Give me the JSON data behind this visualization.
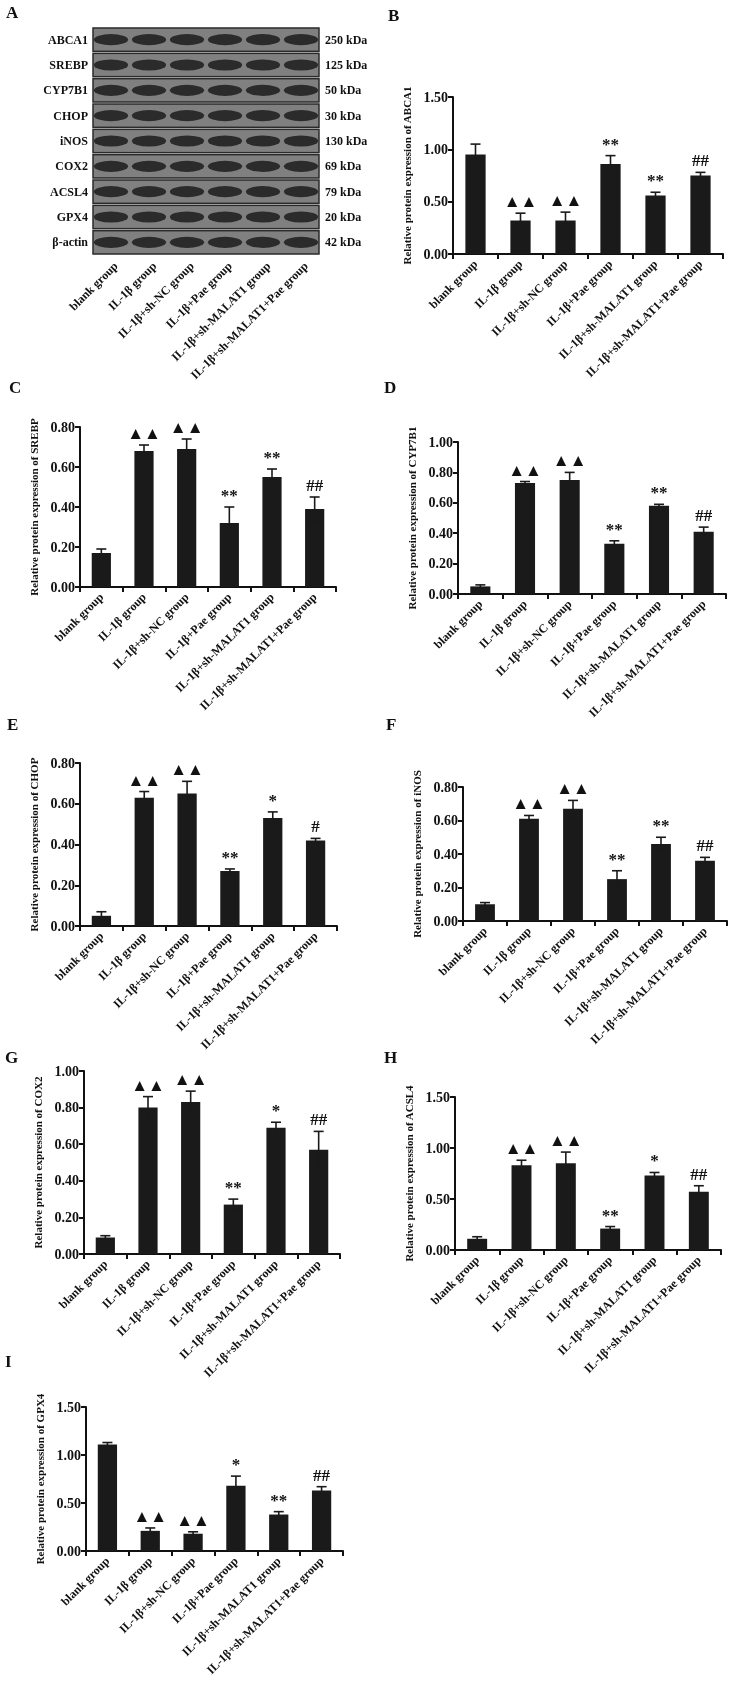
{
  "chart_data": [
    {
      "type": "other",
      "title": "A",
      "categories": [
        "blank group",
        "IL-1β group",
        "IL-1β+sh-NC group",
        "IL-1β+Pae group",
        "IL-1β+sh-MALAT1 group",
        "IL-1β+sh-MALAT1+Pae group"
      ],
      "y_categories": [
        "ABCA1",
        "SREBP",
        "CYP7B1",
        "CHOP",
        "iNOS",
        "COX2",
        "ACSL4",
        "GPX4",
        "β-actin"
      ],
      "y2_categories": [
        "250 kDa",
        "125 kDa",
        "50 kDa",
        "30 kDa",
        "130 kDa",
        "69 kDa",
        "79 kDa",
        "20 kDa",
        "42 kDa"
      ]
    },
    {
      "type": "bar",
      "title": "B",
      "categories": [
        "blank group",
        "IL-1β group",
        "IL-1β+sh-NC group",
        "IL-1β+Pae group",
        "IL-1β+sh-MALAT1 group",
        "IL-1β+sh-MALAT1+Pae group"
      ],
      "values": [
        0.95,
        0.32,
        0.32,
        0.86,
        0.56,
        0.75
      ],
      "errors": [
        0.1,
        0.07,
        0.08,
        0.08,
        0.03,
        0.03
      ],
      "color": "#1a1a1a",
      "ylabel": "Relative protein expression of ABCA1",
      "ylim": [
        0,
        1.5
      ],
      "yticks": [
        {
          "value": 0,
          "label": "0.00"
        },
        {
          "value": 0.5,
          "label": "0.50"
        },
        {
          "value": 1,
          "label": "1.00"
        },
        {
          "value": 1.5,
          "label": "1.50"
        }
      ],
      "annotations": [
        {
          "text": "▲▲",
          "x": "IL-1β group",
          "y": 0.32
        },
        {
          "text": "▲▲",
          "x": "IL-1β+sh-NC group",
          "y": 0.32
        },
        {
          "text": "**",
          "x": "IL-1β+Pae group",
          "y": 0.86
        },
        {
          "text": "**",
          "x": "IL-1β+sh-MALAT1 group",
          "y": 0.56
        },
        {
          "text": "##",
          "x": "IL-1β+sh-MALAT1+Pae group",
          "y": 0.75
        }
      ]
    },
    {
      "type": "bar",
      "title": "C",
      "categories": [
        "blank group",
        "IL-1β group",
        "IL-1β+sh-NC group",
        "IL-1β+Pae group",
        "IL-1β+sh-MALAT1 group",
        "IL-1β+sh-MALAT1+Pae group"
      ],
      "values": [
        0.17,
        0.68,
        0.69,
        0.32,
        0.55,
        0.39
      ],
      "errors": [
        0.02,
        0.03,
        0.05,
        0.08,
        0.04,
        0.06
      ],
      "color": "#1a1a1a",
      "ylabel": "Relative protein expression of SREBP",
      "ylim": [
        0,
        0.8
      ],
      "yticks": [
        {
          "value": 0,
          "label": "0.00"
        },
        {
          "value": 0.2,
          "label": "0.20"
        },
        {
          "value": 0.4,
          "label": "0.40"
        },
        {
          "value": 0.6,
          "label": "0.60"
        },
        {
          "value": 0.8,
          "label": "0.80"
        }
      ],
      "annotations": [
        {
          "text": "▲▲",
          "x": "IL-1β group",
          "y": 0.68
        },
        {
          "text": "▲▲",
          "x": "IL-1β+sh-NC group",
          "y": 0.69
        },
        {
          "text": "**",
          "x": "IL-1β+Pae group",
          "y": 0.32
        },
        {
          "text": "**",
          "x": "IL-1β+sh-MALAT1 group",
          "y": 0.55
        },
        {
          "text": "##",
          "x": "IL-1β+sh-MALAT1+Pae group",
          "y": 0.39
        }
      ]
    },
    {
      "type": "bar",
      "title": "D",
      "categories": [
        "blank group",
        "IL-1β group",
        "IL-1β+sh-NC group",
        "IL-1β+Pae group",
        "IL-1β+sh-MALAT1 group",
        "IL-1β+sh-MALAT1+Pae group"
      ],
      "values": [
        0.05,
        0.73,
        0.75,
        0.33,
        0.58,
        0.41
      ],
      "errors": [
        0.01,
        0.01,
        0.05,
        0.02,
        0.01,
        0.03
      ],
      "color": "#1a1a1a",
      "ylabel": "Relative protein expression of CYP7B1",
      "ylim": [
        0,
        1
      ],
      "yticks": [
        {
          "value": 0,
          "label": "0.00"
        },
        {
          "value": 0.2,
          "label": "0.20"
        },
        {
          "value": 0.4,
          "label": "0.40"
        },
        {
          "value": 0.6,
          "label": "0.60"
        },
        {
          "value": 0.8,
          "label": "0.80"
        },
        {
          "value": 1,
          "label": "1.00"
        }
      ],
      "annotations": [
        {
          "text": "▲▲",
          "x": "IL-1β group",
          "y": 0.73
        },
        {
          "text": "▲▲",
          "x": "IL-1β+sh-NC group",
          "y": 0.75
        },
        {
          "text": "**",
          "x": "IL-1β+Pae group",
          "y": 0.33
        },
        {
          "text": "**",
          "x": "IL-1β+sh-MALAT1 group",
          "y": 0.58
        },
        {
          "text": "##",
          "x": "IL-1β+sh-MALAT1+Pae group",
          "y": 0.41
        }
      ]
    },
    {
      "type": "bar",
      "title": "E",
      "categories": [
        "blank group",
        "IL-1β group",
        "IL-1β+sh-NC group",
        "IL-1β+Pae group",
        "IL-1β+sh-MALAT1 group",
        "IL-1β+sh-MALAT1+Pae group"
      ],
      "values": [
        0.05,
        0.63,
        0.65,
        0.27,
        0.53,
        0.42
      ],
      "errors": [
        0.02,
        0.03,
        0.06,
        0.01,
        0.03,
        0.01
      ],
      "color": "#1a1a1a",
      "ylabel": "Relative protein expression of CHOP",
      "ylim": [
        0,
        0.8
      ],
      "yticks": [
        {
          "value": 0,
          "label": "0.00"
        },
        {
          "value": 0.2,
          "label": "0.20"
        },
        {
          "value": 0.4,
          "label": "0.40"
        },
        {
          "value": 0.6,
          "label": "0.60"
        },
        {
          "value": 0.8,
          "label": "0.80"
        }
      ],
      "annotations": [
        {
          "text": "▲▲",
          "x": "IL-1β group",
          "y": 0.63
        },
        {
          "text": "▲▲",
          "x": "IL-1β+sh-NC group",
          "y": 0.65
        },
        {
          "text": "**",
          "x": "IL-1β+Pae group",
          "y": 0.27
        },
        {
          "text": "*",
          "x": "IL-1β+sh-MALAT1 group",
          "y": 0.53
        },
        {
          "text": "#",
          "x": "IL-1β+sh-MALAT1+Pae group",
          "y": 0.42
        }
      ]
    },
    {
      "type": "bar",
      "title": "F",
      "categories": [
        "blank group",
        "IL-1β group",
        "IL-1β+sh-NC group",
        "IL-1β+Pae group",
        "IL-1β+sh-MALAT1 group",
        "IL-1β+sh-MALAT1+Pae group"
      ],
      "values": [
        0.1,
        0.61,
        0.67,
        0.25,
        0.46,
        0.36
      ],
      "errors": [
        0.01,
        0.02,
        0.05,
        0.05,
        0.04,
        0.02
      ],
      "color": "#1a1a1a",
      "ylabel": "Relative protein expression of iNOS",
      "ylim": [
        0,
        0.8
      ],
      "yticks": [
        {
          "value": 0,
          "label": "0.00"
        },
        {
          "value": 0.2,
          "label": "0.20"
        },
        {
          "value": 0.4,
          "label": "0.40"
        },
        {
          "value": 0.6,
          "label": "0.60"
        },
        {
          "value": 0.8,
          "label": "0.80"
        }
      ],
      "annotations": [
        {
          "text": "▲▲",
          "x": "IL-1β group",
          "y": 0.61
        },
        {
          "text": "▲▲",
          "x": "IL-1β+sh-NC group",
          "y": 0.67
        },
        {
          "text": "**",
          "x": "IL-1β+Pae group",
          "y": 0.25
        },
        {
          "text": "**",
          "x": "IL-1β+sh-MALAT1 group",
          "y": 0.46
        },
        {
          "text": "##",
          "x": "IL-1β+sh-MALAT1+Pae group",
          "y": 0.36
        }
      ]
    },
    {
      "type": "bar",
      "title": "G",
      "categories": [
        "blank group",
        "IL-1β group",
        "IL-1β+sh-NC group",
        "IL-1β+Pae group",
        "IL-1β+sh-MALAT1 group",
        "IL-1β+sh-MALAT1+Pae group"
      ],
      "values": [
        0.09,
        0.8,
        0.83,
        0.27,
        0.69,
        0.57
      ],
      "errors": [
        0.01,
        0.06,
        0.06,
        0.03,
        0.03,
        0.1
      ],
      "color": "#1a1a1a",
      "ylabel": "Relative protein expression of COX2",
      "ylim": [
        0,
        1
      ],
      "yticks": [
        {
          "value": 0,
          "label": "0.00"
        },
        {
          "value": 0.2,
          "label": "0.20"
        },
        {
          "value": 0.4,
          "label": "0.40"
        },
        {
          "value": 0.6,
          "label": "0.60"
        },
        {
          "value": 0.8,
          "label": "0.80"
        },
        {
          "value": 1,
          "label": "1.00"
        }
      ],
      "annotations": [
        {
          "text": "▲▲",
          "x": "IL-1β group",
          "y": 0.8
        },
        {
          "text": "▲▲",
          "x": "IL-1β+sh-NC group",
          "y": 0.83
        },
        {
          "text": "**",
          "x": "IL-1β+Pae group",
          "y": 0.27
        },
        {
          "text": "*",
          "x": "IL-1β+sh-MALAT1 group",
          "y": 0.69
        },
        {
          "text": "##",
          "x": "IL-1β+sh-MALAT1+Pae group",
          "y": 0.57
        }
      ]
    },
    {
      "type": "bar",
      "title": "H",
      "categories": [
        "blank group",
        "IL-1β group",
        "IL-1β+sh-NC group",
        "IL-1β+Pae group",
        "IL-1β+sh-MALAT1 group",
        "IL-1β+sh-MALAT1+Pae group"
      ],
      "values": [
        0.11,
        0.83,
        0.85,
        0.21,
        0.73,
        0.57
      ],
      "errors": [
        0.02,
        0.05,
        0.11,
        0.02,
        0.03,
        0.06
      ],
      "color": "#1a1a1a",
      "ylabel": "Relative protein expression of ACSL4",
      "ylim": [
        0,
        1.5
      ],
      "yticks": [
        {
          "value": 0,
          "label": "0.00"
        },
        {
          "value": 0.5,
          "label": "0.50"
        },
        {
          "value": 1,
          "label": "1.00"
        },
        {
          "value": 1.5,
          "label": "1.50"
        }
      ],
      "annotations": [
        {
          "text": "▲▲",
          "x": "IL-1β group",
          "y": 0.83
        },
        {
          "text": "▲▲",
          "x": "IL-1β+sh-NC group",
          "y": 0.85
        },
        {
          "text": "**",
          "x": "IL-1β+Pae group",
          "y": 0.21
        },
        {
          "text": "*",
          "x": "IL-1β+sh-MALAT1 group",
          "y": 0.73
        },
        {
          "text": "##",
          "x": "IL-1β+sh-MALAT1+Pae group",
          "y": 0.57
        }
      ]
    },
    {
      "type": "bar",
      "title": "I",
      "categories": [
        "blank group",
        "IL-1β group",
        "IL-1β+sh-NC group",
        "IL-1β+Pae group",
        "IL-1β+sh-MALAT1 group",
        "IL-1β+sh-MALAT1+Pae group"
      ],
      "values": [
        1.11,
        0.21,
        0.18,
        0.68,
        0.38,
        0.63
      ],
      "errors": [
        0.02,
        0.03,
        0.02,
        0.1,
        0.03,
        0.04
      ],
      "color": "#1a1a1a",
      "ylabel": "Relative protein expression of GPX4",
      "ylim": [
        0,
        1.5
      ],
      "yticks": [
        {
          "value": 0,
          "label": "0.00"
        },
        {
          "value": 0.5,
          "label": "0.50"
        },
        {
          "value": 1,
          "label": "1.00"
        },
        {
          "value": 1.5,
          "label": "1.50"
        }
      ],
      "annotations": [
        {
          "text": "▲▲",
          "x": "IL-1β group",
          "y": 0.21
        },
        {
          "text": "▲▲",
          "x": "IL-1β+sh-NC group",
          "y": 0.18
        },
        {
          "text": "*",
          "x": "IL-1β+Pae group",
          "y": 0.68
        },
        {
          "text": "**",
          "x": "IL-1β+sh-MALAT1 group",
          "y": 0.38
        },
        {
          "text": "##",
          "x": "IL-1β+sh-MALAT1+Pae group",
          "y": 0.63
        }
      ]
    }
  ]
}
